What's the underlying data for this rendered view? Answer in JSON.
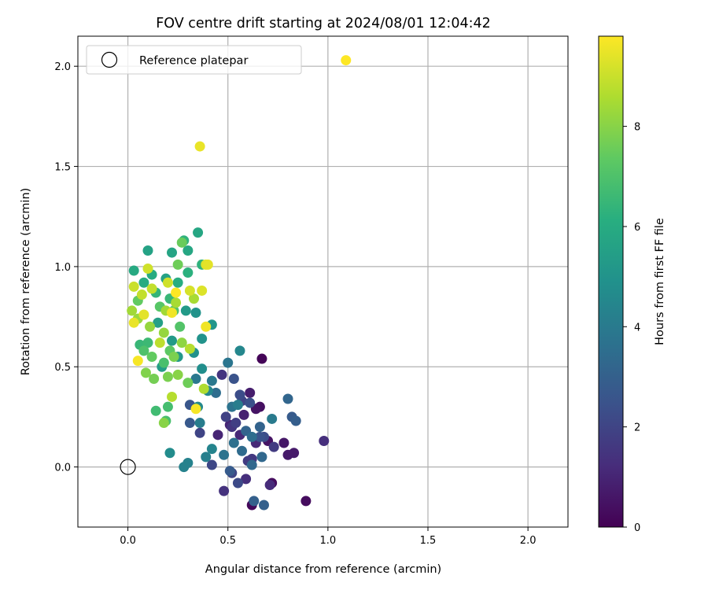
{
  "chart_data": {
    "type": "scatter",
    "title": "FOV centre drift starting at 2024/08/01 12:04:42",
    "xlabel": "Angular distance from reference (arcmin)",
    "ylabel": "Rotation from reference (arcmin)",
    "xlim": [
      -0.25,
      2.2
    ],
    "ylim": [
      -0.3,
      2.15
    ],
    "x_ticks": [
      0.0,
      0.5,
      1.0,
      1.5,
      2.0
    ],
    "x_tick_labels": [
      "0.0",
      "0.5",
      "1.0",
      "1.5",
      "2.0"
    ],
    "y_ticks": [
      0.0,
      0.5,
      1.0,
      1.5,
      2.0
    ],
    "y_tick_labels": [
      "0.0",
      "0.5",
      "1.0",
      "1.5",
      "2.0"
    ],
    "grid": true,
    "legend": {
      "position": "top-left",
      "entries": [
        "Reference platepar"
      ]
    },
    "reference_point": {
      "x": 0.0,
      "y": 0.0,
      "label": "Reference platepar"
    },
    "colorbar": {
      "label": "Hours from first FF file",
      "range": [
        0,
        9.8
      ],
      "ticks": [
        0,
        2,
        4,
        6,
        8
      ],
      "tick_labels": [
        "0",
        "2",
        "4",
        "6",
        "8"
      ],
      "colormap": "viridis"
    },
    "points": [
      {
        "x": 0.67,
        "y": 0.54,
        "h": 0.1
      },
      {
        "x": 0.62,
        "y": -0.19,
        "h": 0.2
      },
      {
        "x": 0.89,
        "y": -0.17,
        "h": 0.3
      },
      {
        "x": 0.72,
        "y": -0.08,
        "h": 0.3
      },
      {
        "x": 0.66,
        "y": 0.3,
        "h": 0.4
      },
      {
        "x": 0.64,
        "y": 0.29,
        "h": 0.5
      },
      {
        "x": 0.7,
        "y": 0.13,
        "h": 0.5
      },
      {
        "x": 0.78,
        "y": 0.12,
        "h": 0.6
      },
      {
        "x": 0.8,
        "y": 0.06,
        "h": 0.7
      },
      {
        "x": 0.83,
        "y": 0.07,
        "h": 0.7
      },
      {
        "x": 0.61,
        "y": 0.37,
        "h": 0.8
      },
      {
        "x": 0.58,
        "y": 0.26,
        "h": 0.9
      },
      {
        "x": 0.51,
        "y": 0.21,
        "h": 1.0
      },
      {
        "x": 0.45,
        "y": 0.16,
        "h": 1.0
      },
      {
        "x": 0.56,
        "y": 0.16,
        "h": 1.1
      },
      {
        "x": 0.64,
        "y": 0.12,
        "h": 1.1
      },
      {
        "x": 0.71,
        "y": -0.09,
        "h": 1.2
      },
      {
        "x": 0.59,
        "y": -0.06,
        "h": 1.3
      },
      {
        "x": 0.98,
        "y": 0.13,
        "h": 1.3
      },
      {
        "x": 0.48,
        "y": -0.12,
        "h": 1.4
      },
      {
        "x": 0.47,
        "y": 0.46,
        "h": 1.5
      },
      {
        "x": 0.52,
        "y": 0.2,
        "h": 1.5
      },
      {
        "x": 0.62,
        "y": 0.04,
        "h": 1.6
      },
      {
        "x": 0.73,
        "y": 0.1,
        "h": 1.7
      },
      {
        "x": 0.6,
        "y": 0.03,
        "h": 1.7
      },
      {
        "x": 0.54,
        "y": 0.22,
        "h": 1.8
      },
      {
        "x": 0.49,
        "y": 0.25,
        "h": 1.9
      },
      {
        "x": 0.57,
        "y": 0.33,
        "h": 2.0
      },
      {
        "x": 0.36,
        "y": 0.17,
        "h": 2.0
      },
      {
        "x": 0.42,
        "y": 0.01,
        "h": 2.1
      },
      {
        "x": 0.52,
        "y": -0.03,
        "h": 2.1
      },
      {
        "x": 0.55,
        "y": -0.08,
        "h": 2.2
      },
      {
        "x": 0.68,
        "y": 0.15,
        "h": 2.3
      },
      {
        "x": 0.56,
        "y": 0.36,
        "h": 2.3
      },
      {
        "x": 0.61,
        "y": 0.32,
        "h": 2.4
      },
      {
        "x": 0.53,
        "y": 0.44,
        "h": 2.5
      },
      {
        "x": 0.66,
        "y": 0.15,
        "h": 2.5
      },
      {
        "x": 0.31,
        "y": 0.31,
        "h": 2.6
      },
      {
        "x": 0.31,
        "y": 0.22,
        "h": 2.7
      },
      {
        "x": 0.51,
        "y": -0.02,
        "h": 2.8
      },
      {
        "x": 0.82,
        "y": 0.25,
        "h": 2.8
      },
      {
        "x": 0.84,
        "y": 0.23,
        "h": 2.9
      },
      {
        "x": 0.63,
        "y": -0.17,
        "h": 3.0
      },
      {
        "x": 0.68,
        "y": -0.19,
        "h": 3.0
      },
      {
        "x": 0.59,
        "y": 0.18,
        "h": 3.1
      },
      {
        "x": 0.66,
        "y": 0.2,
        "h": 3.1
      },
      {
        "x": 0.8,
        "y": 0.34,
        "h": 3.2
      },
      {
        "x": 0.62,
        "y": 0.01,
        "h": 3.3
      },
      {
        "x": 0.67,
        "y": 0.05,
        "h": 3.3
      },
      {
        "x": 0.57,
        "y": 0.08,
        "h": 3.4
      },
      {
        "x": 0.62,
        "y": 0.15,
        "h": 3.5
      },
      {
        "x": 0.44,
        "y": 0.37,
        "h": 3.5
      },
      {
        "x": 0.53,
        "y": 0.12,
        "h": 3.6
      },
      {
        "x": 0.48,
        "y": 0.06,
        "h": 3.7
      },
      {
        "x": 0.52,
        "y": 0.3,
        "h": 3.7
      },
      {
        "x": 0.5,
        "y": 0.52,
        "h": 3.8
      },
      {
        "x": 0.42,
        "y": 0.43,
        "h": 3.9
      },
      {
        "x": 0.34,
        "y": 0.44,
        "h": 3.9
      },
      {
        "x": 0.72,
        "y": 0.24,
        "h": 4.0
      },
      {
        "x": 0.55,
        "y": 0.31,
        "h": 4.1
      },
      {
        "x": 0.36,
        "y": 0.22,
        "h": 4.1
      },
      {
        "x": 0.39,
        "y": 0.05,
        "h": 4.2
      },
      {
        "x": 0.3,
        "y": 0.02,
        "h": 4.3
      },
      {
        "x": 0.28,
        "y": 0.0,
        "h": 4.3
      },
      {
        "x": 0.42,
        "y": 0.09,
        "h": 4.4
      },
      {
        "x": 0.56,
        "y": 0.58,
        "h": 4.5
      },
      {
        "x": 0.4,
        "y": 0.38,
        "h": 4.5
      },
      {
        "x": 0.35,
        "y": 0.3,
        "h": 4.6
      },
      {
        "x": 0.21,
        "y": 0.07,
        "h": 4.7
      },
      {
        "x": 0.37,
        "y": 0.49,
        "h": 4.8
      },
      {
        "x": 0.33,
        "y": 0.57,
        "h": 4.9
      },
      {
        "x": 0.37,
        "y": 0.64,
        "h": 5.0
      },
      {
        "x": 0.34,
        "y": 0.77,
        "h": 5.0
      },
      {
        "x": 0.42,
        "y": 0.71,
        "h": 5.1
      },
      {
        "x": 0.25,
        "y": 0.55,
        "h": 5.2
      },
      {
        "x": 0.29,
        "y": 0.78,
        "h": 5.3
      },
      {
        "x": 0.22,
        "y": 0.63,
        "h": 5.3
      },
      {
        "x": 0.17,
        "y": 0.5,
        "h": 5.4
      },
      {
        "x": 0.15,
        "y": 0.72,
        "h": 5.5
      },
      {
        "x": 0.19,
        "y": 0.94,
        "h": 5.6
      },
      {
        "x": 0.1,
        "y": 1.08,
        "h": 5.6
      },
      {
        "x": 0.22,
        "y": 1.07,
        "h": 5.7
      },
      {
        "x": 0.3,
        "y": 1.08,
        "h": 5.8
      },
      {
        "x": 0.35,
        "y": 1.17,
        "h": 5.8
      },
      {
        "x": 0.03,
        "y": 0.98,
        "h": 5.9
      },
      {
        "x": 0.08,
        "y": 0.92,
        "h": 6.0
      },
      {
        "x": 0.12,
        "y": 0.96,
        "h": 6.0
      },
      {
        "x": 0.25,
        "y": 0.92,
        "h": 6.1
      },
      {
        "x": 0.3,
        "y": 0.97,
        "h": 6.2
      },
      {
        "x": 0.28,
        "y": 1.13,
        "h": 6.3
      },
      {
        "x": 0.37,
        "y": 1.01,
        "h": 6.3
      },
      {
        "x": 0.14,
        "y": 0.87,
        "h": 6.4
      },
      {
        "x": 0.21,
        "y": 0.84,
        "h": 6.5
      },
      {
        "x": 0.06,
        "y": 0.61,
        "h": 6.5
      },
      {
        "x": 0.1,
        "y": 0.62,
        "h": 6.6
      },
      {
        "x": 0.14,
        "y": 0.28,
        "h": 6.7
      },
      {
        "x": 0.2,
        "y": 0.3,
        "h": 6.8
      },
      {
        "x": 0.19,
        "y": 0.23,
        "h": 6.9
      },
      {
        "x": 0.18,
        "y": 0.52,
        "h": 6.9
      },
      {
        "x": 0.08,
        "y": 0.58,
        "h": 7.0
      },
      {
        "x": 0.26,
        "y": 0.7,
        "h": 7.1
      },
      {
        "x": 0.23,
        "y": 0.78,
        "h": 7.1
      },
      {
        "x": 0.16,
        "y": 0.8,
        "h": 7.2
      },
      {
        "x": 0.21,
        "y": 0.58,
        "h": 7.3
      },
      {
        "x": 0.12,
        "y": 0.55,
        "h": 7.4
      },
      {
        "x": 0.05,
        "y": 0.83,
        "h": 7.4
      },
      {
        "x": 0.27,
        "y": 1.12,
        "h": 7.5
      },
      {
        "x": 0.25,
        "y": 1.01,
        "h": 7.6
      },
      {
        "x": 0.3,
        "y": 0.42,
        "h": 7.6
      },
      {
        "x": 0.13,
        "y": 0.44,
        "h": 7.7
      },
      {
        "x": 0.2,
        "y": 0.45,
        "h": 7.8
      },
      {
        "x": 0.23,
        "y": 0.55,
        "h": 7.8
      },
      {
        "x": 0.09,
        "y": 0.47,
        "h": 7.9
      },
      {
        "x": 0.18,
        "y": 0.22,
        "h": 8.0
      },
      {
        "x": 0.25,
        "y": 0.46,
        "h": 8.0
      },
      {
        "x": 0.27,
        "y": 0.62,
        "h": 8.1
      },
      {
        "x": 0.18,
        "y": 0.67,
        "h": 8.2
      },
      {
        "x": 0.11,
        "y": 0.7,
        "h": 8.2
      },
      {
        "x": 0.05,
        "y": 0.74,
        "h": 8.3
      },
      {
        "x": 0.02,
        "y": 0.78,
        "h": 8.4
      },
      {
        "x": 0.19,
        "y": 0.78,
        "h": 8.4
      },
      {
        "x": 0.24,
        "y": 0.82,
        "h": 8.5
      },
      {
        "x": 0.33,
        "y": 0.84,
        "h": 8.5
      },
      {
        "x": 0.38,
        "y": 0.39,
        "h": 8.6
      },
      {
        "x": 0.22,
        "y": 0.35,
        "h": 8.7
      },
      {
        "x": 0.31,
        "y": 0.59,
        "h": 8.7
      },
      {
        "x": 0.16,
        "y": 0.62,
        "h": 8.8
      },
      {
        "x": 0.12,
        "y": 0.89,
        "h": 8.9
      },
      {
        "x": 0.07,
        "y": 0.86,
        "h": 8.9
      },
      {
        "x": 0.03,
        "y": 0.9,
        "h": 9.0
      },
      {
        "x": 0.1,
        "y": 0.99,
        "h": 9.1
      },
      {
        "x": 0.2,
        "y": 0.92,
        "h": 9.1
      },
      {
        "x": 0.31,
        "y": 0.88,
        "h": 9.2
      },
      {
        "x": 0.37,
        "y": 0.88,
        "h": 9.3
      },
      {
        "x": 0.39,
        "y": 1.01,
        "h": 9.3
      },
      {
        "x": 0.4,
        "y": 1.01,
        "h": 9.4
      },
      {
        "x": 0.08,
        "y": 0.76,
        "h": 9.4
      },
      {
        "x": 0.03,
        "y": 0.72,
        "h": 9.5
      },
      {
        "x": 0.36,
        "y": 1.6,
        "h": 9.5
      },
      {
        "x": 0.39,
        "y": 0.7,
        "h": 9.6
      },
      {
        "x": 0.22,
        "y": 0.77,
        "h": 9.6
      },
      {
        "x": 0.05,
        "y": 0.53,
        "h": 9.7
      },
      {
        "x": 0.34,
        "y": 0.29,
        "h": 9.7
      },
      {
        "x": 0.24,
        "y": 0.87,
        "h": 9.8
      },
      {
        "x": 1.09,
        "y": 2.03,
        "h": 9.8
      }
    ]
  }
}
